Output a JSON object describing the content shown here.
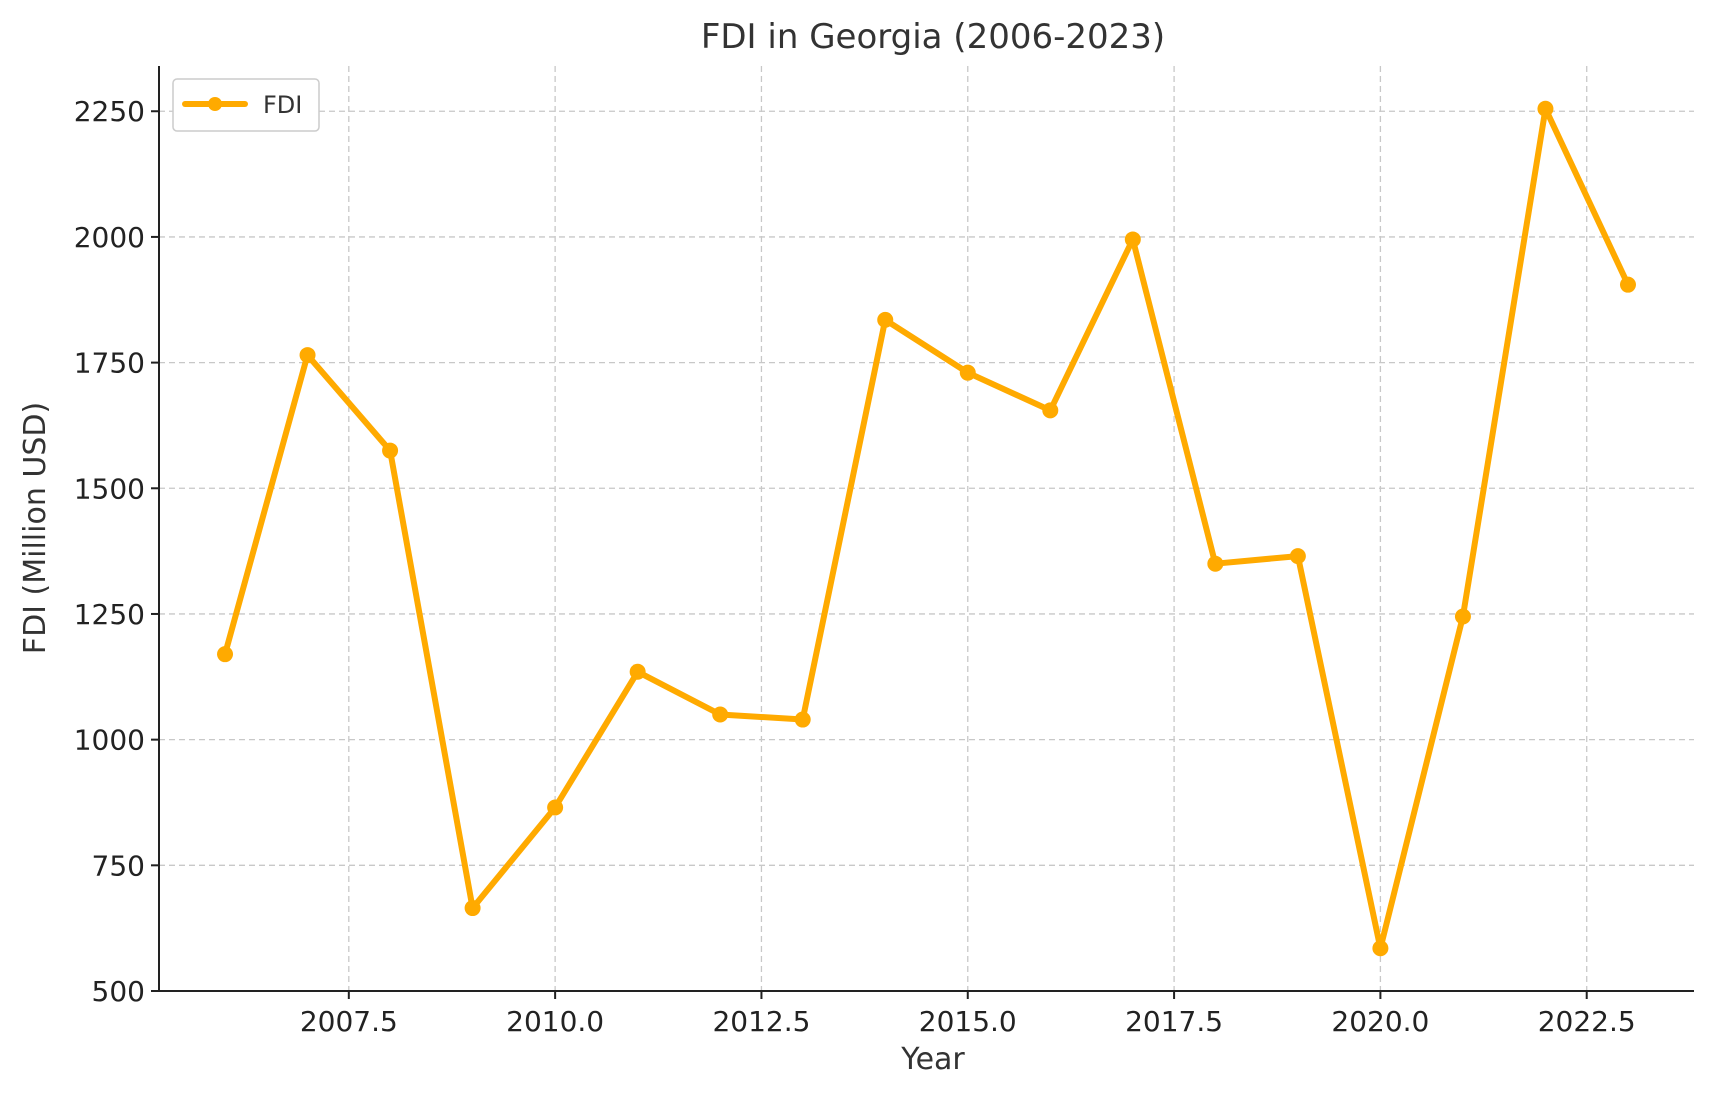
{
  "chart_data": {
    "type": "line",
    "title": "FDI in Georgia (2006-2023)",
    "xlabel": "Year",
    "ylabel": "FDI (Million USD)",
    "x": [
      2006,
      2007,
      2008,
      2009,
      2010,
      2011,
      2012,
      2013,
      2014,
      2015,
      2016,
      2017,
      2018,
      2019,
      2020,
      2021,
      2022,
      2023
    ],
    "series": [
      {
        "name": "FDI",
        "color": "#FFAA00",
        "marker": "circle",
        "values": [
          1170,
          1765,
          1575,
          665,
          865,
          1135,
          1050,
          1040,
          1835,
          1730,
          1655,
          1995,
          1350,
          1365,
          585,
          1245,
          2255,
          1905
        ]
      }
    ],
    "xlim": [
      2005.2,
      2023.8
    ],
    "ylim": [
      500,
      2340
    ],
    "xticks": [
      "2007.5",
      "2010.0",
      "2012.5",
      "2015.0",
      "2017.5",
      "2020.0",
      "2022.5"
    ],
    "xtick_values": [
      2007.5,
      2010.0,
      2012.5,
      2015.0,
      2017.5,
      2020.0,
      2022.5
    ],
    "yticks": [
      "500",
      "750",
      "1000",
      "1250",
      "1500",
      "1750",
      "2000",
      "2250"
    ],
    "ytick_values": [
      500,
      750,
      1000,
      1250,
      1500,
      1750,
      2000,
      2250
    ],
    "grid": true,
    "legend_position": "top-left"
  }
}
